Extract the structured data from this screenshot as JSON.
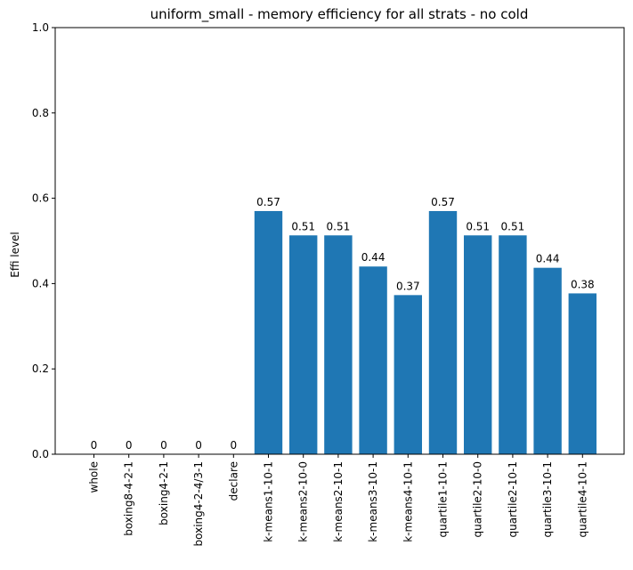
{
  "chart_data": {
    "type": "bar",
    "title": "uniform_small - memory efficiency for all strats - no cold",
    "xlabel": "",
    "ylabel": "Effi level",
    "ylim": [
      0,
      1
    ],
    "yticks": [
      0.0,
      0.2,
      0.4,
      0.6,
      0.8,
      1.0
    ],
    "ytick_labels": [
      "0.0",
      "0.2",
      "0.4",
      "0.6",
      "0.8",
      "1.0"
    ],
    "categories": [
      "whole",
      "boxing8-4-2-1",
      "boxing4-2-1",
      "boxing4-2-4/3-1",
      "declare",
      "k-means1-10-1",
      "k-means2-10-0",
      "k-means2-10-1",
      "k-means3-10-1",
      "k-means4-10-1",
      "quartile1-10-1",
      "quartile2-10-0",
      "quartile2-10-1",
      "quartile3-10-1",
      "quartile4-10-1"
    ],
    "values": [
      0,
      0,
      0,
      0,
      0,
      0.57,
      0.513,
      0.513,
      0.44,
      0.373,
      0.57,
      0.513,
      0.513,
      0.437,
      0.377
    ],
    "data_labels": [
      "0",
      "0",
      "0",
      "0",
      "0",
      "0.57",
      "0.51",
      "0.51",
      "0.44",
      "0.37",
      "0.57",
      "0.51",
      "0.51",
      "0.44",
      "0.38"
    ],
    "bar_color": "#1f77b4",
    "grid": false,
    "legend": "none"
  }
}
